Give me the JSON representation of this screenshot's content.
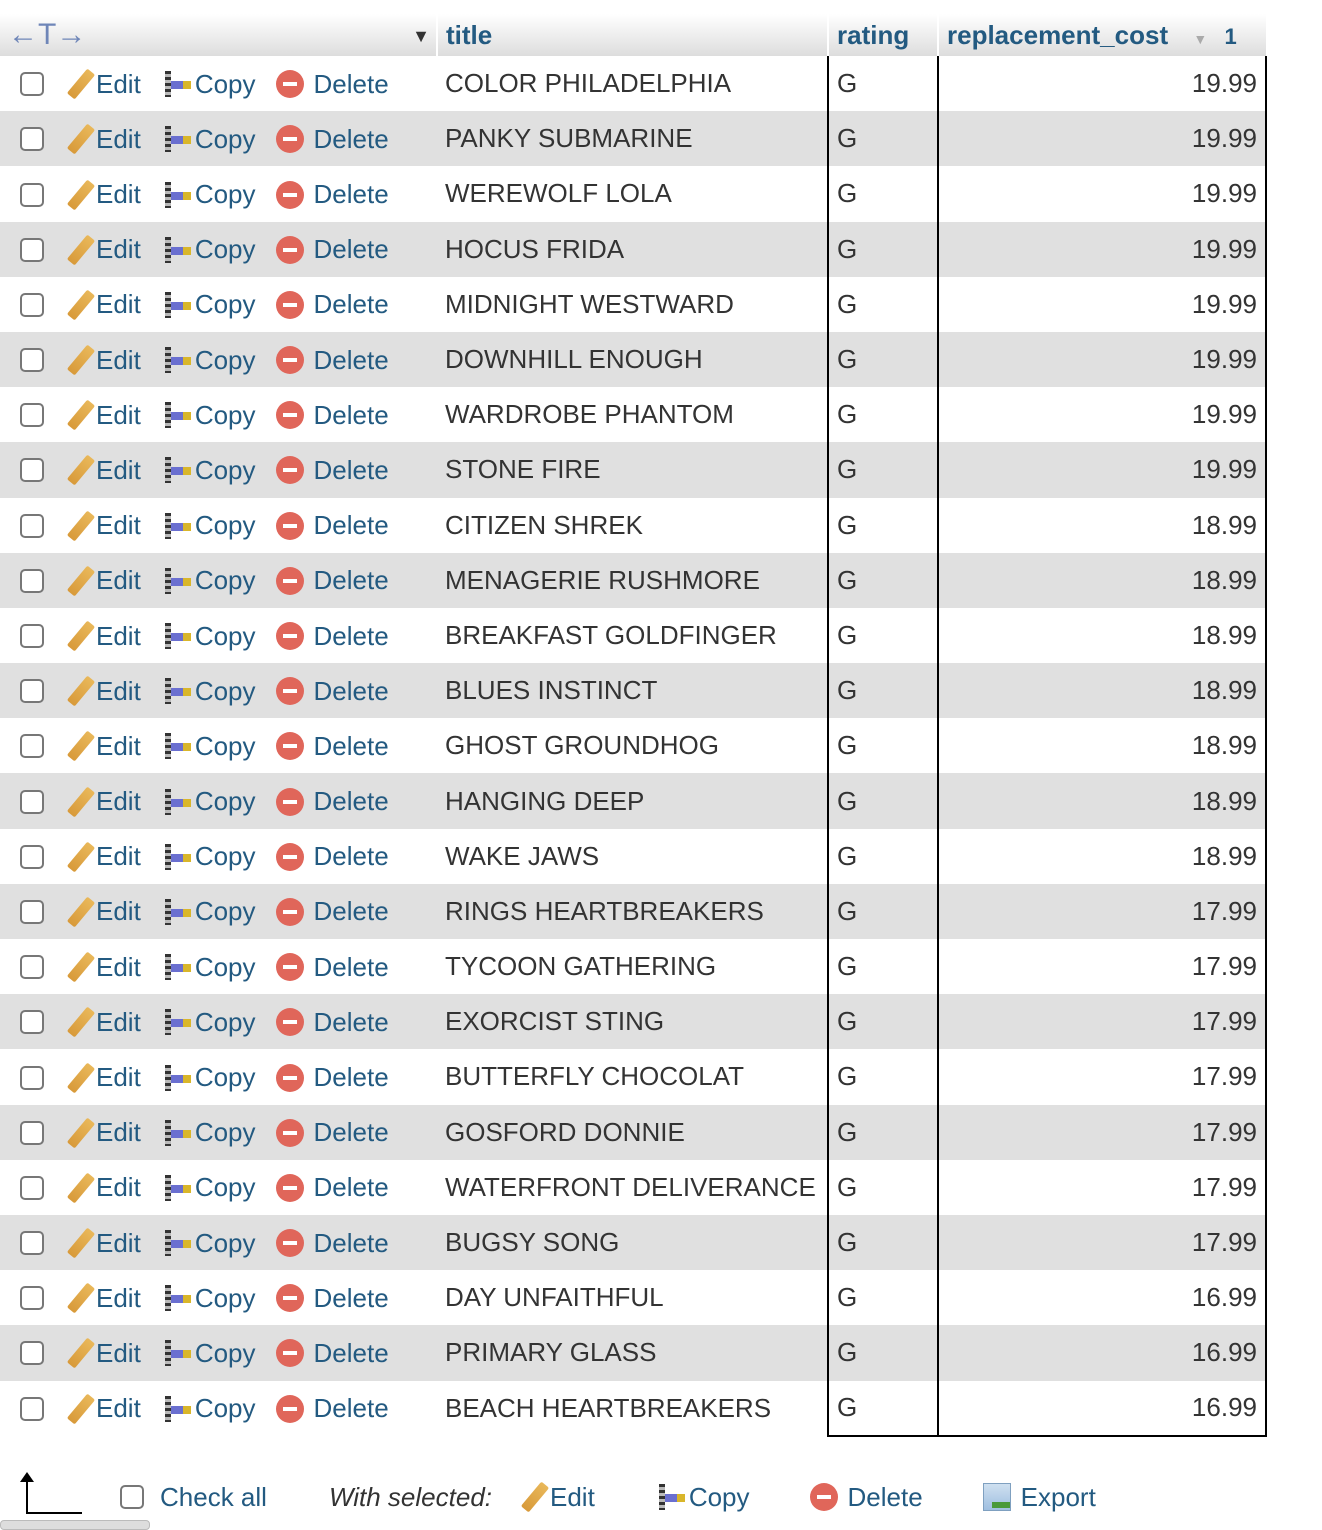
{
  "header": {
    "col_title": "title",
    "col_rating": "rating",
    "col_cost": "replacement_cost",
    "sort_order": "1"
  },
  "actions": {
    "edit": "Edit",
    "copy": "Copy",
    "delete": "Delete"
  },
  "rows": [
    {
      "title": "COLOR PHILADELPHIA",
      "rating": "G",
      "cost": "19.99"
    },
    {
      "title": "PANKY SUBMARINE",
      "rating": "G",
      "cost": "19.99"
    },
    {
      "title": "WEREWOLF LOLA",
      "rating": "G",
      "cost": "19.99"
    },
    {
      "title": "HOCUS FRIDA",
      "rating": "G",
      "cost": "19.99"
    },
    {
      "title": "MIDNIGHT WESTWARD",
      "rating": "G",
      "cost": "19.99"
    },
    {
      "title": "DOWNHILL ENOUGH",
      "rating": "G",
      "cost": "19.99"
    },
    {
      "title": "WARDROBE PHANTOM",
      "rating": "G",
      "cost": "19.99"
    },
    {
      "title": "STONE FIRE",
      "rating": "G",
      "cost": "19.99"
    },
    {
      "title": "CITIZEN SHREK",
      "rating": "G",
      "cost": "18.99"
    },
    {
      "title": "MENAGERIE RUSHMORE",
      "rating": "G",
      "cost": "18.99"
    },
    {
      "title": "BREAKFAST GOLDFINGER",
      "rating": "G",
      "cost": "18.99"
    },
    {
      "title": "BLUES INSTINCT",
      "rating": "G",
      "cost": "18.99"
    },
    {
      "title": "GHOST GROUNDHOG",
      "rating": "G",
      "cost": "18.99"
    },
    {
      "title": "HANGING DEEP",
      "rating": "G",
      "cost": "18.99"
    },
    {
      "title": "WAKE JAWS",
      "rating": "G",
      "cost": "18.99"
    },
    {
      "title": "RINGS HEARTBREAKERS",
      "rating": "G",
      "cost": "17.99"
    },
    {
      "title": "TYCOON GATHERING",
      "rating": "G",
      "cost": "17.99"
    },
    {
      "title": "EXORCIST STING",
      "rating": "G",
      "cost": "17.99"
    },
    {
      "title": "BUTTERFLY CHOCOLAT",
      "rating": "G",
      "cost": "17.99"
    },
    {
      "title": "GOSFORD DONNIE",
      "rating": "G",
      "cost": "17.99"
    },
    {
      "title": "WATERFRONT DELIVERANCE",
      "rating": "G",
      "cost": "17.99"
    },
    {
      "title": "BUGSY SONG",
      "rating": "G",
      "cost": "17.99"
    },
    {
      "title": "DAY UNFAITHFUL",
      "rating": "G",
      "cost": "16.99"
    },
    {
      "title": "PRIMARY GLASS",
      "rating": "G",
      "cost": "16.99"
    },
    {
      "title": "BEACH HEARTBREAKERS",
      "rating": "G",
      "cost": "16.99"
    }
  ],
  "footer": {
    "check_all": "Check all",
    "with_selected": "With selected:",
    "edit": "Edit",
    "copy": "Copy",
    "delete": "Delete",
    "export": "Export"
  },
  "colors": {
    "link": "#235a81",
    "row_alt": "#e0e0e0"
  }
}
